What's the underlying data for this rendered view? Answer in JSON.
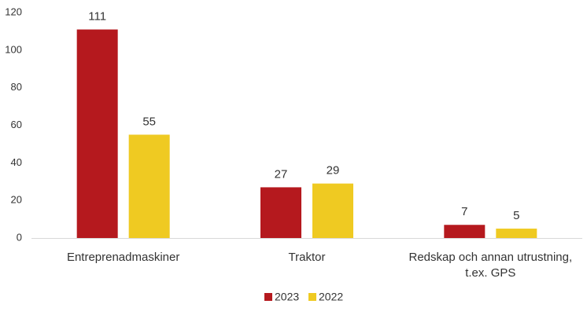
{
  "chart_data": {
    "type": "bar",
    "categories": [
      "Entreprenadmaskiner",
      "Traktor",
      "Redskap och annan utrustning, t.ex. GPS"
    ],
    "series": [
      {
        "name": "2023",
        "color": "#b5191e",
        "values": [
          111,
          27,
          7
        ]
      },
      {
        "name": "2022",
        "color": "#efca22",
        "values": [
          55,
          29,
          5
        ]
      }
    ],
    "ylim": [
      0,
      120
    ],
    "yticks": [
      0,
      20,
      40,
      60,
      80,
      100,
      120
    ],
    "grid": false,
    "legend": "bottom"
  }
}
